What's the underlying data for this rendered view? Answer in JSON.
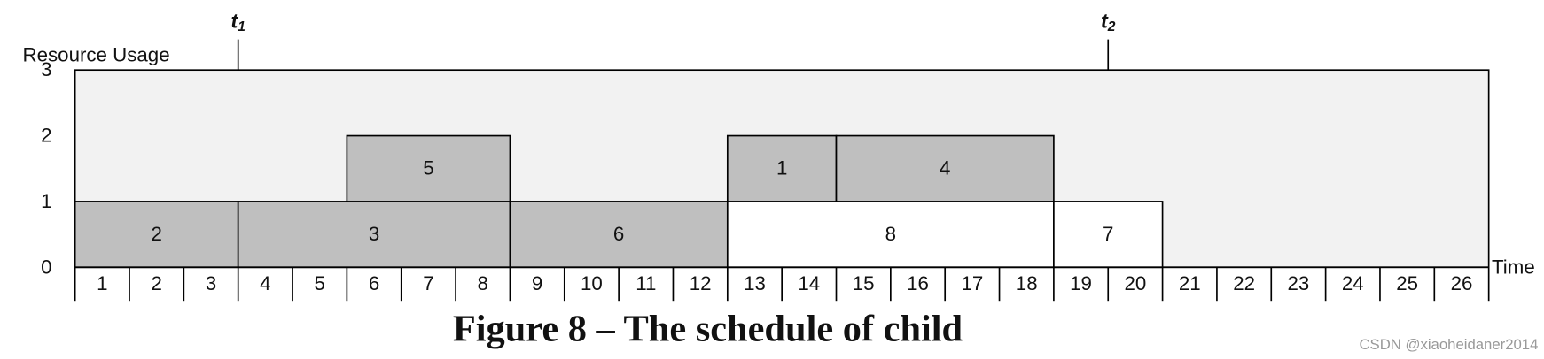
{
  "chart_data": {
    "type": "schedule",
    "title": "Figure 8 – The schedule of child",
    "y_label": "Resource Usage",
    "x_label": "Time",
    "watermark": "CSDN @xiaoheidaner2014",
    "xlim": [
      0,
      26
    ],
    "ylim": [
      0,
      3
    ],
    "yticks": [
      0,
      1,
      2,
      3
    ],
    "slots": [
      1,
      2,
      3,
      4,
      5,
      6,
      7,
      8,
      9,
      10,
      11,
      12,
      13,
      14,
      15,
      16,
      17,
      18,
      19,
      20,
      21,
      22,
      23,
      24,
      25,
      26
    ],
    "background": "#f2f2f2",
    "tasks": [
      {
        "name": "2",
        "start": 0,
        "end": 3,
        "y0": 0,
        "y1": 1,
        "color": "#bfbfbf"
      },
      {
        "name": "3",
        "start": 3,
        "end": 8,
        "y0": 0,
        "y1": 1,
        "color": "#bfbfbf"
      },
      {
        "name": "6",
        "start": 8,
        "end": 12,
        "y0": 0,
        "y1": 1,
        "color": "#bfbfbf"
      },
      {
        "name": "8",
        "start": 12,
        "end": 18,
        "y0": 0,
        "y1": 1,
        "color": "#ffffff"
      },
      {
        "name": "7",
        "start": 18,
        "end": 20,
        "y0": 0,
        "y1": 1,
        "color": "#ffffff"
      },
      {
        "name": "5",
        "start": 5,
        "end": 8,
        "y0": 1,
        "y1": 2,
        "color": "#bfbfbf"
      },
      {
        "name": "1",
        "start": 12,
        "end": 14,
        "y0": 1,
        "y1": 2,
        "color": "#bfbfbf"
      },
      {
        "name": "4",
        "start": 14,
        "end": 18,
        "y0": 1,
        "y1": 2,
        "color": "#bfbfbf"
      }
    ],
    "markers": [
      {
        "label": "t",
        "sub": "1",
        "time": 3
      },
      {
        "label": "t",
        "sub": "2",
        "time": 19
      }
    ]
  }
}
